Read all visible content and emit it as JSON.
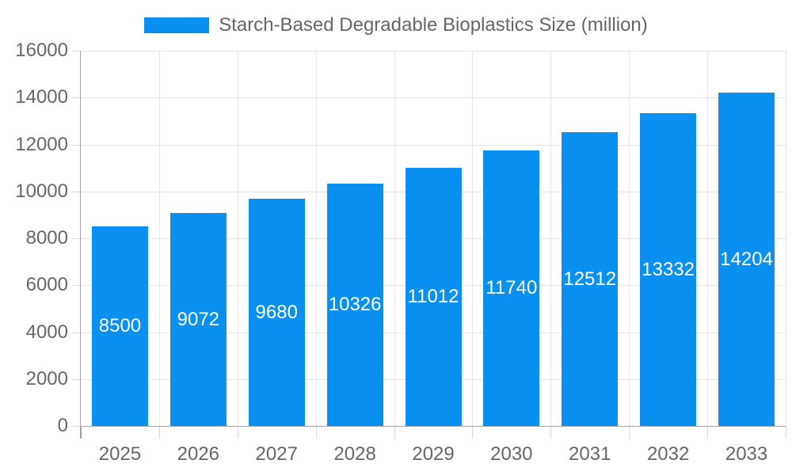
{
  "legend": {
    "label": "Starch-Based Degradable Bioplastics Size (million)"
  },
  "chart_data": {
    "type": "bar",
    "title": "Starch-Based Degradable Bioplastics Size (million)",
    "series_name": "Starch-Based Degradable Bioplastics Size (million)",
    "categories": [
      "2025",
      "2026",
      "2027",
      "2028",
      "2029",
      "2030",
      "2031",
      "2032",
      "2033"
    ],
    "values": [
      8500,
      9072,
      9680,
      10326,
      11012,
      11740,
      12512,
      13332,
      14204
    ],
    "xlabel": "",
    "ylabel": "",
    "ylim": [
      0,
      16000
    ],
    "yticks": [
      0,
      2000,
      4000,
      6000,
      8000,
      10000,
      12000,
      14000,
      16000
    ],
    "grid": true,
    "legend_position": "top",
    "value_label_position": "inside-center",
    "colors": {
      "bar": "#0a90f0",
      "bar_label_text": "#ffffff",
      "axis_text": "#666666",
      "legend_text": "#666666",
      "gridline": "#e6e6e6",
      "axis_line": "#a3a3a3",
      "tick": "#d9d9d9",
      "background": "#ffffff"
    }
  }
}
